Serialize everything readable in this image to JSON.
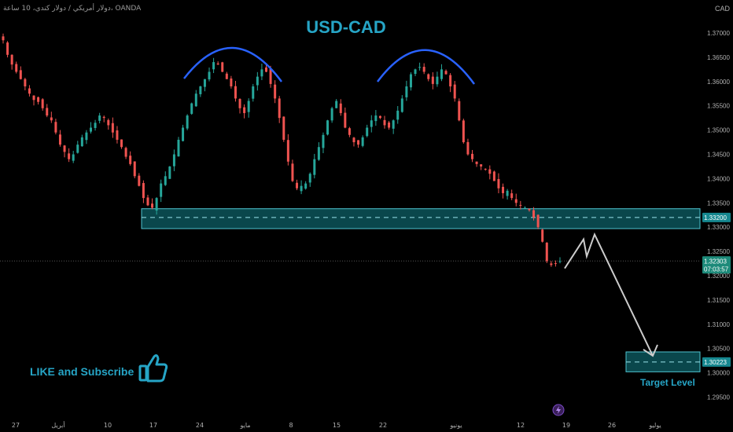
{
  "header": {
    "symbol_text": "دولار أمريكي / دولار كندي، 10 ساعة، OANDA",
    "currency": "CAD",
    "title": "USD-CAD"
  },
  "annotations": {
    "like_text": "LIKE and Subscribe",
    "target_text": "Target Level",
    "resistance_label": "1.33200",
    "target_label": "1.30223",
    "price_label": "1.32303",
    "countdown": "07:03:57"
  },
  "colors": {
    "bull": "#26a69a",
    "bear": "#ef5350",
    "accent": "#26a5c6",
    "arc": "#2962ff",
    "arrow": "#cccccc"
  },
  "chart_data": {
    "type": "candlestick",
    "title": "USD-CAD",
    "yaxis": {
      "min": 1.29,
      "max": 1.375,
      "ticks": [
        "1.29500",
        "1.30000",
        "1.30500",
        "1.31000",
        "1.31500",
        "1.32000",
        "1.32500",
        "1.33000",
        "1.33500",
        "1.34000",
        "1.34500",
        "1.35000",
        "1.35500",
        "1.36000",
        "1.36500",
        "1.37000"
      ]
    },
    "xaxis": {
      "ticks": [
        "27",
        "أبريل",
        "10",
        "17",
        "24",
        "مايو",
        "8",
        "15",
        "22",
        "يونيو",
        "12",
        "19",
        "26",
        "يوليو"
      ]
    },
    "last_price": 1.32303,
    "support_zone": [
      1.3297,
      1.3338
    ],
    "target_zone": [
      1.3002,
      1.3043
    ],
    "projected_path": [
      1.3215,
      1.3275,
      1.324,
      1.3285,
      1.3035
    ],
    "close_path": [
      1.3685,
      1.3655,
      1.3635,
      1.362,
      1.3605,
      1.359,
      1.3575,
      1.3562,
      1.3558,
      1.3545,
      1.353,
      1.352,
      1.3495,
      1.347,
      1.3455,
      1.344,
      1.345,
      1.347,
      1.3485,
      1.3495,
      1.3505,
      1.3515,
      1.353,
      1.3525,
      1.351,
      1.3495,
      1.348,
      1.3465,
      1.3445,
      1.343,
      1.3405,
      1.3385,
      1.336,
      1.3345,
      1.334,
      1.336,
      1.339,
      1.3405,
      1.3425,
      1.345,
      1.348,
      1.3505,
      1.353,
      1.3555,
      1.3575,
      1.359,
      1.3605,
      1.362,
      1.364,
      1.3635,
      1.362,
      1.3605,
      1.359,
      1.3565,
      1.3545,
      1.3535,
      1.356,
      1.359,
      1.361,
      1.3625,
      1.362,
      1.3595,
      1.3565,
      1.3525,
      1.348,
      1.3435,
      1.3395,
      1.338,
      1.3385,
      1.339,
      1.341,
      1.344,
      1.3465,
      1.349,
      1.352,
      1.3545,
      1.356,
      1.3535,
      1.3505,
      1.349,
      1.3475,
      1.347,
      1.3485,
      1.3505,
      1.352,
      1.353,
      1.3525,
      1.351,
      1.3505,
      1.352,
      1.354,
      1.3565,
      1.359,
      1.3615,
      1.3625,
      1.363,
      1.362,
      1.3605,
      1.3595,
      1.361,
      1.3625,
      1.3615,
      1.359,
      1.3565,
      1.352,
      1.3475,
      1.345,
      1.344,
      1.343,
      1.3425,
      1.342,
      1.341,
      1.3395,
      1.338,
      1.337,
      1.3375,
      1.336,
      1.335,
      1.3345,
      1.334,
      1.3335,
      1.332,
      1.33,
      1.327,
      1.323,
      1.3222,
      1.3225,
      1.323
    ]
  }
}
